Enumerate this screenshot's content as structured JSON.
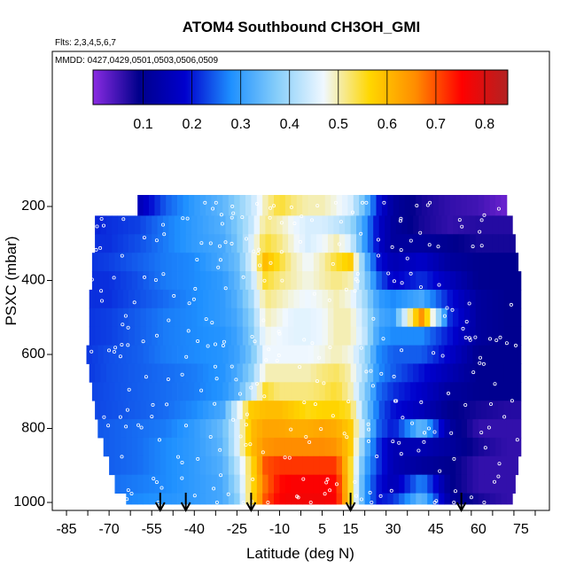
{
  "chart_data": {
    "type": "heatmap",
    "title": "ATOM4 Southbound CH3OH_GMI",
    "flights_note": "Flts: 2,3,4,5,6,7",
    "dates_note": "MMDD: 0427,0429,0501,0503,0506,0509",
    "xlabel": "Latitude (deg N)",
    "ylabel": "PSXC (mbar)",
    "xlim": [
      -90,
      85
    ],
    "ylim": [
      1000,
      100
    ],
    "x_ticks": [
      -85,
      -70,
      -55,
      -40,
      -25,
      -10,
      5,
      15,
      30,
      45,
      60,
      75
    ],
    "y_ticks": [
      200,
      400,
      600,
      800,
      1000
    ],
    "colorbar": {
      "range": [
        0,
        0.85
      ],
      "ticks": [
        0.1,
        0.2,
        0.3,
        0.4,
        0.5,
        0.6,
        0.7,
        0.8
      ],
      "colors": [
        "#8a2be2",
        "#00008b",
        "#0000cd",
        "#1e90ff",
        "#87cefa",
        "#f0f8ff",
        "#ffd700",
        "#ff8c00",
        "#ff0000",
        "#b22222"
      ]
    },
    "arrow_latitudes": [
      -52,
      -43,
      -20,
      15,
      54
    ],
    "pressure_levels": [
      200,
      250,
      300,
      350,
      400,
      450,
      500,
      550,
      600,
      650,
      700,
      750,
      800,
      850,
      900,
      950,
      1000
    ],
    "level_lat_range": [
      [
        -60,
        70
      ],
      [
        -75,
        72
      ],
      [
        -75,
        73
      ],
      [
        -76,
        74
      ],
      [
        -76,
        75
      ],
      [
        -77,
        75
      ],
      [
        -77,
        75
      ],
      [
        -77,
        75
      ],
      [
        -78,
        75
      ],
      [
        -77,
        75
      ],
      [
        -76,
        75
      ],
      [
        -75,
        75
      ],
      [
        -74,
        75
      ],
      [
        -72,
        75
      ],
      [
        -70,
        74
      ],
      [
        -68,
        73
      ],
      [
        -64,
        72
      ]
    ],
    "profile_lat": [
      -80,
      -70,
      -60,
      -50,
      -40,
      -30,
      -25,
      -20,
      -15,
      -10,
      -5,
      0,
      5,
      10,
      15,
      20,
      25,
      30,
      40,
      50,
      60,
      70
    ],
    "profile_values": [
      [
        0.15,
        0.15,
        0.15,
        0.25,
        0.3,
        0.34,
        0.38,
        0.43,
        0.5,
        0.55,
        0.52,
        0.5,
        0.5,
        0.48,
        0.45,
        0.35,
        0.2,
        0.12,
        0.08,
        0.06,
        0.05,
        0.02
      ],
      [
        0.2,
        0.22,
        0.23,
        0.27,
        0.3,
        0.33,
        0.37,
        0.43,
        0.52,
        0.5,
        0.47,
        0.45,
        0.45,
        0.43,
        0.4,
        0.3,
        0.18,
        0.12,
        0.08,
        0.06,
        0.07,
        0.07
      ],
      [
        0.22,
        0.22,
        0.24,
        0.27,
        0.3,
        0.32,
        0.36,
        0.45,
        0.55,
        0.52,
        0.48,
        0.45,
        0.47,
        0.5,
        0.45,
        0.3,
        0.18,
        0.12,
        0.12,
        0.1,
        0.08,
        0.08
      ],
      [
        0.22,
        0.23,
        0.25,
        0.27,
        0.28,
        0.32,
        0.35,
        0.45,
        0.6,
        0.55,
        0.5,
        0.47,
        0.5,
        0.55,
        0.58,
        0.35,
        0.2,
        0.15,
        0.18,
        0.12,
        0.1,
        0.1
      ],
      [
        0.22,
        0.22,
        0.24,
        0.27,
        0.28,
        0.3,
        0.34,
        0.42,
        0.55,
        0.52,
        0.5,
        0.48,
        0.5,
        0.52,
        0.5,
        0.38,
        0.25,
        0.18,
        0.22,
        0.16,
        0.1,
        0.1
      ],
      [
        0.22,
        0.22,
        0.24,
        0.26,
        0.28,
        0.3,
        0.33,
        0.4,
        0.52,
        0.5,
        0.48,
        0.47,
        0.48,
        0.5,
        0.48,
        0.4,
        0.3,
        0.28,
        0.32,
        0.2,
        0.12,
        0.1
      ],
      [
        0.22,
        0.23,
        0.25,
        0.27,
        0.28,
        0.3,
        0.32,
        0.38,
        0.5,
        0.48,
        0.46,
        0.46,
        0.47,
        0.5,
        0.5,
        0.42,
        0.32,
        0.3,
        0.65,
        0.22,
        0.12,
        0.1
      ],
      [
        0.22,
        0.23,
        0.25,
        0.27,
        0.28,
        0.29,
        0.31,
        0.37,
        0.48,
        0.47,
        0.46,
        0.46,
        0.47,
        0.5,
        0.5,
        0.43,
        0.3,
        0.28,
        0.28,
        0.2,
        0.12,
        0.1
      ],
      [
        0.22,
        0.24,
        0.25,
        0.27,
        0.28,
        0.29,
        0.31,
        0.36,
        0.47,
        0.47,
        0.47,
        0.47,
        0.48,
        0.5,
        0.48,
        0.4,
        0.28,
        0.25,
        0.25,
        0.18,
        0.1,
        0.1
      ],
      [
        0.22,
        0.24,
        0.25,
        0.26,
        0.27,
        0.29,
        0.32,
        0.38,
        0.5,
        0.5,
        0.5,
        0.5,
        0.52,
        0.53,
        0.5,
        0.4,
        0.28,
        0.25,
        0.2,
        0.15,
        0.1,
        0.1
      ],
      [
        0.23,
        0.24,
        0.25,
        0.26,
        0.27,
        0.29,
        0.33,
        0.42,
        0.55,
        0.52,
        0.52,
        0.52,
        0.53,
        0.55,
        0.5,
        0.38,
        0.26,
        0.22,
        0.18,
        0.12,
        0.1,
        0.1
      ],
      [
        0.23,
        0.24,
        0.25,
        0.26,
        0.28,
        0.32,
        0.45,
        0.58,
        0.6,
        0.6,
        0.58,
        0.56,
        0.57,
        0.57,
        0.55,
        0.38,
        0.25,
        0.2,
        0.16,
        0.1,
        0.08,
        0.07
      ],
      [
        0.24,
        0.25,
        0.26,
        0.27,
        0.3,
        0.35,
        0.45,
        0.6,
        0.63,
        0.63,
        0.62,
        0.62,
        0.63,
        0.62,
        0.58,
        0.4,
        0.25,
        0.2,
        0.35,
        0.12,
        0.06,
        0.06
      ],
      [
        0.25,
        0.25,
        0.26,
        0.28,
        0.3,
        0.34,
        0.45,
        0.6,
        0.65,
        0.66,
        0.66,
        0.66,
        0.66,
        0.65,
        0.58,
        0.35,
        0.22,
        0.15,
        0.15,
        0.12,
        0.08,
        0.06
      ],
      [
        0.25,
        0.25,
        0.26,
        0.28,
        0.3,
        0.33,
        0.42,
        0.55,
        0.7,
        0.72,
        0.72,
        0.72,
        0.72,
        0.72,
        0.55,
        0.32,
        0.22,
        0.15,
        0.12,
        0.1,
        0.06,
        0.06
      ],
      [
        0.26,
        0.26,
        0.27,
        0.28,
        0.3,
        0.32,
        0.4,
        0.55,
        0.68,
        0.75,
        0.76,
        0.76,
        0.76,
        0.75,
        0.55,
        0.3,
        0.2,
        0.15,
        0.28,
        0.1,
        0.06,
        0.06
      ],
      [
        0.27,
        0.27,
        0.28,
        0.29,
        0.3,
        0.32,
        0.38,
        0.55,
        0.7,
        0.76,
        0.77,
        0.77,
        0.77,
        0.76,
        0.55,
        0.3,
        0.2,
        0.22,
        0.35,
        0.12,
        0.08,
        0.06
      ]
    ]
  }
}
